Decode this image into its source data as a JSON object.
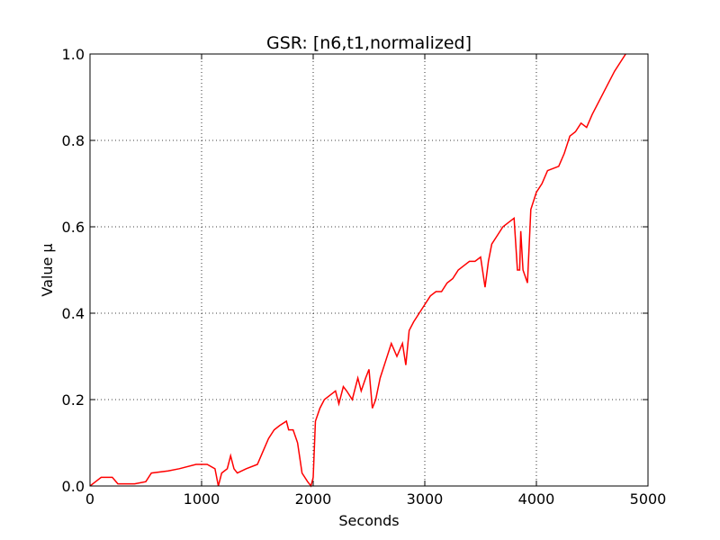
{
  "chart_data": {
    "type": "line",
    "title": "GSR: [n6,t1,normalized]",
    "xlabel": "Seconds",
    "ylabel": "Value µ",
    "x": [
      0,
      50,
      100,
      200,
      250,
      400,
      500,
      550,
      700,
      800,
      950,
      1050,
      1120,
      1150,
      1180,
      1230,
      1260,
      1290,
      1320,
      1400,
      1500,
      1550,
      1600,
      1650,
      1700,
      1760,
      1780,
      1820,
      1860,
      1900,
      1950,
      1980,
      2000,
      2020,
      2060,
      2100,
      2150,
      2200,
      2230,
      2270,
      2300,
      2350,
      2400,
      2430,
      2470,
      2500,
      2530,
      2560,
      2600,
      2650,
      2700,
      2750,
      2800,
      2830,
      2860,
      2900,
      2950,
      3000,
      3050,
      3100,
      3150,
      3200,
      3250,
      3300,
      3350,
      3400,
      3450,
      3500,
      3540,
      3570,
      3600,
      3650,
      3700,
      3750,
      3800,
      3830,
      3850,
      3860,
      3880,
      3920,
      3950,
      4000,
      4050,
      4100,
      4200,
      4250,
      4300,
      4350,
      4400,
      4450,
      4500,
      4600,
      4700,
      4800
    ],
    "series": [
      {
        "name": "GSR",
        "color": "#ff0000",
        "values": [
          0.0,
          0.01,
          0.02,
          0.02,
          0.005,
          0.005,
          0.01,
          0.03,
          0.035,
          0.04,
          0.05,
          0.05,
          0.04,
          0.0,
          0.03,
          0.04,
          0.07,
          0.04,
          0.03,
          0.04,
          0.05,
          0.08,
          0.11,
          0.13,
          0.14,
          0.15,
          0.13,
          0.13,
          0.1,
          0.03,
          0.01,
          0.0,
          0.02,
          0.15,
          0.18,
          0.2,
          0.21,
          0.22,
          0.19,
          0.23,
          0.22,
          0.2,
          0.25,
          0.22,
          0.25,
          0.27,
          0.18,
          0.2,
          0.25,
          0.29,
          0.33,
          0.3,
          0.33,
          0.28,
          0.36,
          0.38,
          0.4,
          0.42,
          0.44,
          0.45,
          0.45,
          0.47,
          0.48,
          0.5,
          0.51,
          0.52,
          0.52,
          0.53,
          0.46,
          0.52,
          0.56,
          0.58,
          0.6,
          0.61,
          0.62,
          0.5,
          0.5,
          0.59,
          0.5,
          0.47,
          0.64,
          0.68,
          0.7,
          0.73,
          0.74,
          0.77,
          0.81,
          0.82,
          0.84,
          0.83,
          0.86,
          0.91,
          0.96,
          1.0
        ]
      }
    ],
    "xlim": [
      0,
      5000
    ],
    "xticks": [
      0,
      1000,
      2000,
      3000,
      4000,
      5000
    ],
    "ylim": [
      0,
      1
    ],
    "yticks": [
      {
        "value": 0,
        "label": "0.0"
      },
      0.2,
      0.4,
      0.6,
      0.8,
      {
        "value": 1,
        "label": "1.0"
      }
    ],
    "grid": true
  }
}
